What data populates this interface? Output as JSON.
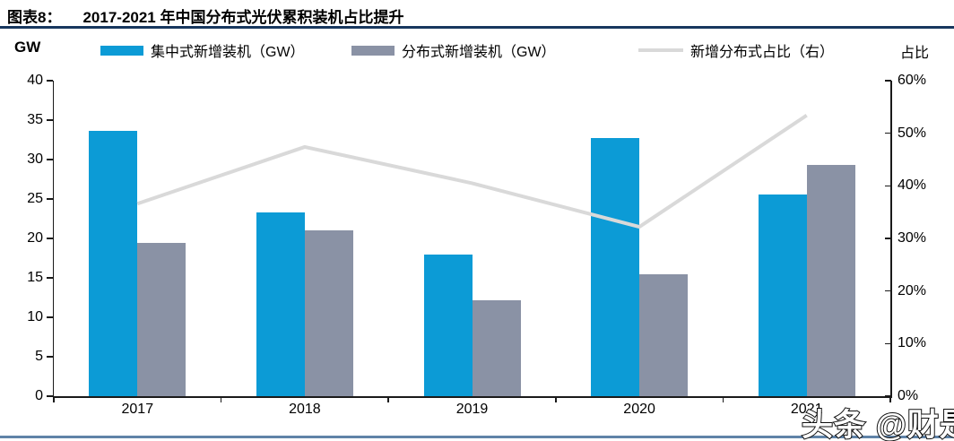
{
  "header": {
    "figure_label": "图表8：",
    "title": "2017-2021 年中国分布式光伏累积装机占比提升"
  },
  "axes": {
    "left_unit": "GW",
    "right_unit": "占比",
    "left_ticks": [
      "0",
      "5",
      "10",
      "15",
      "20",
      "25",
      "30",
      "35",
      "40"
    ],
    "right_ticks": [
      "0%",
      "10%",
      "20%",
      "30%",
      "40%",
      "50%",
      "60%"
    ]
  },
  "legend": [
    {
      "label": "集中式新增装机（GW）",
      "type": "bar",
      "color": "#0c9bd6"
    },
    {
      "label": "分布式新增装机（GW）",
      "type": "bar",
      "color": "#8a92a5"
    },
    {
      "label": "新增分布式占比（右）",
      "type": "line",
      "color": "#d9d9d9"
    }
  ],
  "watermark": {
    "text": "头条 @财是"
  },
  "colors": {
    "title_rule": "#17375e",
    "bottom_rule": "#6083a8",
    "axis": "#1a1a1a",
    "centralized_bar": "#0c9bd6",
    "distributed_bar": "#8a92a5",
    "ratio_line": "#d9d9d9"
  },
  "chart_data": {
    "type": "bar",
    "subtype": "grouped bars + line on secondary axis",
    "title": "2017-2021 年中国分布式光伏累积装机占比提升",
    "categories": [
      "2017",
      "2018",
      "2019",
      "2020",
      "2021"
    ],
    "series": [
      {
        "name": "集中式新增装机（GW）",
        "type": "bar",
        "axis": "left",
        "color": "#0c9bd6",
        "values": [
          33.6,
          23.3,
          17.9,
          32.7,
          25.6
        ]
      },
      {
        "name": "分布式新增装机（GW）",
        "type": "bar",
        "axis": "left",
        "color": "#8a92a5",
        "values": [
          19.4,
          21.0,
          12.2,
          15.5,
          29.3
        ]
      },
      {
        "name": "新增分布式占比（右）",
        "type": "line",
        "axis": "right",
        "color": "#d9d9d9",
        "values": [
          36.6,
          47.4,
          40.5,
          32.2,
          53.4
        ]
      }
    ],
    "xlabel": "",
    "ylabel_left": "GW",
    "ylabel_right": "占比",
    "ylim_left": [
      0,
      40
    ],
    "ylim_right_pct": [
      0,
      60
    ],
    "grid": false,
    "legend_position": "top"
  }
}
